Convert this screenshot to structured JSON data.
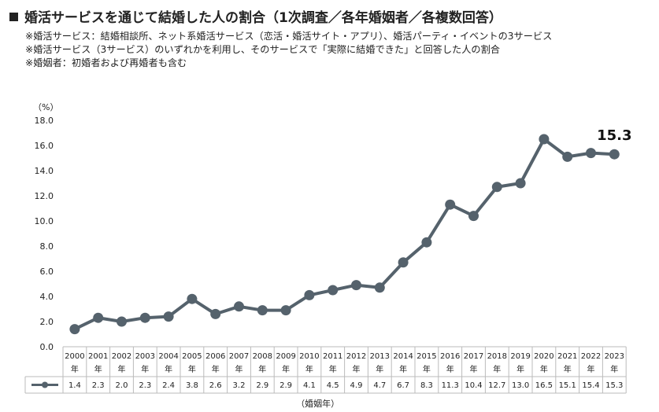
{
  "header": {
    "title": "婚活サービスを通じて結婚した人の割合（1次調査／各年婚姻者／各複数回答）",
    "notes": [
      "※婚活サービス：結婚相談所、ネット系婚活サービス（恋活・婚活サイト・アプリ）、婚活パーティ・イベントの3サービス",
      "※婚活サービス（3サービス）のいずれかを利用し、そのサービスで「実際に結婚できた」と回答した人の割合",
      "※婚姻者：初婚者および再婚者も含む"
    ]
  },
  "colors": {
    "series": "#55626c",
    "grid": "#bbbbbb"
  },
  "chart_data": {
    "type": "line",
    "ylabel": "（%）",
    "xlabel": "（婚姻年）",
    "ylim": [
      0,
      18
    ],
    "yticks": [
      "0.0",
      "2.0",
      "4.0",
      "6.0",
      "8.0",
      "10.0",
      "12.0",
      "14.0",
      "16.0",
      "18.0"
    ],
    "year_suffix": "年",
    "categories": [
      "2000",
      "2001",
      "2002",
      "2003",
      "2004",
      "2005",
      "2006",
      "2007",
      "2008",
      "2009",
      "2010",
      "2011",
      "2012",
      "2013",
      "2014",
      "2015",
      "2016",
      "2017",
      "2018",
      "2019",
      "2020",
      "2021",
      "2022",
      "2023"
    ],
    "values": [
      1.4,
      2.3,
      2.0,
      2.3,
      2.4,
      3.8,
      2.6,
      3.2,
      2.9,
      2.9,
      4.1,
      4.5,
      4.9,
      4.7,
      6.7,
      8.3,
      11.3,
      10.4,
      12.7,
      13.0,
      16.5,
      15.1,
      15.4,
      15.3
    ],
    "value_labels": [
      "1.4",
      "2.3",
      "2.0",
      "2.3",
      "2.4",
      "3.8",
      "2.6",
      "3.2",
      "2.9",
      "2.9",
      "4.1",
      "4.5",
      "4.9",
      "4.7",
      "6.7",
      "8.3",
      "11.3",
      "10.4",
      "12.7",
      "13.0",
      "16.5",
      "15.1",
      "15.4",
      "15.3"
    ],
    "callout": "15.3",
    "grid": false,
    "legend": "data-table"
  }
}
